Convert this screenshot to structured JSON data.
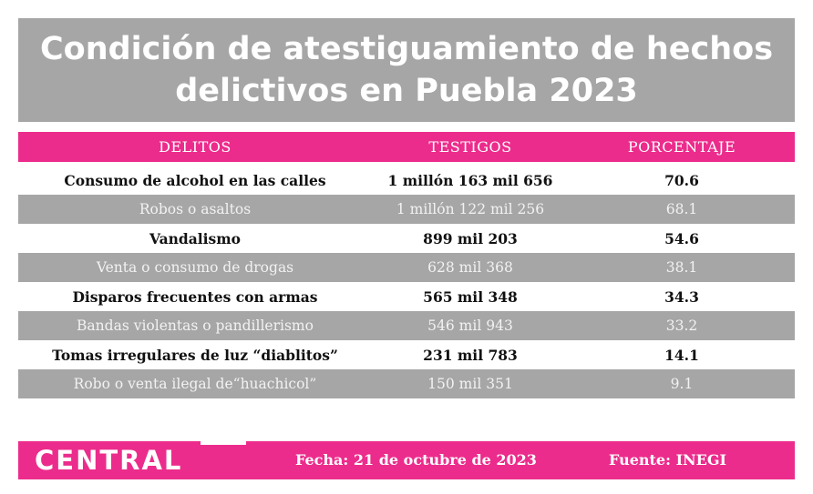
{
  "title": {
    "line1": "Condición de atestiguamiento de hechos",
    "line2": "delictivos en Puebla 2023"
  },
  "chart_data": {
    "type": "table",
    "columns": [
      "DELITOS",
      "TESTIGOS",
      "PORCENTAJE"
    ],
    "rows": [
      {
        "delito": "Consumo de alcohol en las calles",
        "testigos": "1 millón 163 mil 656",
        "porcentaje": "70.6"
      },
      {
        "delito": "Robos o asaltos",
        "testigos": "1 millón 122 mil 256",
        "porcentaje": "68.1"
      },
      {
        "delito": "Vandalismo",
        "testigos": "899 mil 203",
        "porcentaje": "54.6"
      },
      {
        "delito": "Venta o consumo de drogas",
        "testigos": "628 mil 368",
        "porcentaje": "38.1"
      },
      {
        "delito": "Disparos frecuentes con armas",
        "testigos": "565 mil 348",
        "porcentaje": "34.3"
      },
      {
        "delito": "Bandas violentas o pandillerismo",
        "testigos": "546 mil 943",
        "porcentaje": "33.2"
      },
      {
        "delito": "Tomas irregulares de luz “diablitos”",
        "testigos": "231 mil 783",
        "porcentaje": "14.1"
      },
      {
        "delito": "Robo o venta ilegal de“huachicol”",
        "testigos": "150 mil 351",
        "porcentaje": "9.1"
      }
    ]
  },
  "footer": {
    "logo": "CENTRAL",
    "fecha": "Fecha: 21 de octubre de 2023",
    "fuente": "Fuente: INEGI"
  },
  "colors": {
    "accent": "#ec2c8c",
    "gray": "#a6a6a6",
    "white": "#ffffff"
  }
}
